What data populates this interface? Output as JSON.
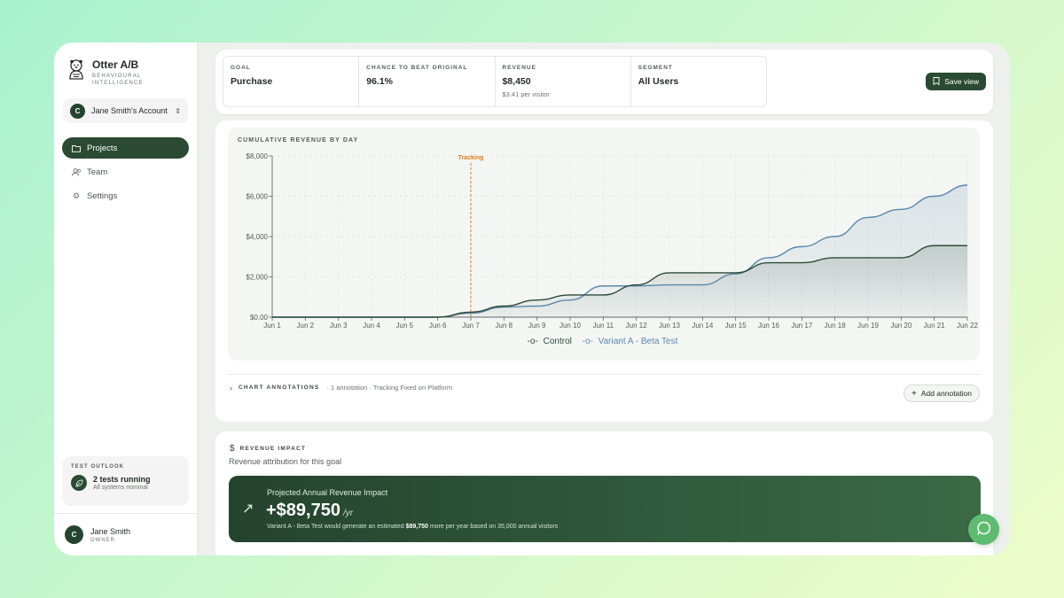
{
  "brand": {
    "name": "Otter A/B",
    "tagline": "BEHAVIOURAL INTELLIGENCE"
  },
  "account": {
    "avatar": "C",
    "name": "Jane Smith's Account"
  },
  "nav": [
    {
      "label": "Projects",
      "icon": "folder-icon",
      "active": true
    },
    {
      "label": "Team",
      "icon": "users-icon",
      "active": false
    },
    {
      "label": "Settings",
      "icon": "gear-icon",
      "active": false
    }
  ],
  "outlook": {
    "title": "TEST OUTLOOK",
    "status": "2 tests running",
    "sub": "All systems nominal"
  },
  "user": {
    "avatar": "C",
    "name": "Jane Smith",
    "role": "OWNER"
  },
  "stats": [
    {
      "label": "GOAL",
      "value": "Purchase",
      "sub": ""
    },
    {
      "label": "CHANCE TO BEAT ORIGINAL",
      "value": "96.1%",
      "sub": ""
    },
    {
      "label": "REVENUE",
      "value": "$8,450",
      "sub": "$3.41 per visitor"
    },
    {
      "label": "SEGMENT",
      "value": "All Users",
      "sub": ""
    }
  ],
  "save_view": "Save view",
  "chart_title": "CUMULATIVE REVENUE BY DAY",
  "chart_data": {
    "type": "area",
    "title": "CUMULATIVE REVENUE BY DAY",
    "categories": [
      "Jun 1",
      "Jun 2",
      "Jun 3",
      "Jun 4",
      "Jun 5",
      "Jun 6",
      "Jun 7",
      "Jun 8",
      "Jun 9",
      "Jun 10",
      "Jun 11",
      "Jun 12",
      "Jun 13",
      "Jun 14",
      "Jun 15",
      "Jun 16",
      "Jun 17",
      "Jun 18",
      "Jun 19",
      "Jun 20",
      "Jun 21",
      "Jun 22"
    ],
    "series": [
      {
        "name": "Control",
        "color": "#2e4b3a",
        "values": [
          0,
          0,
          0,
          0,
          0,
          0,
          250,
          550,
          850,
          1100,
          1100,
          1600,
          2200,
          2200,
          2200,
          2700,
          2700,
          2950,
          2950,
          2950,
          3550,
          3550
        ]
      },
      {
        "name": "Variant A - Beta Test",
        "color": "#5c88aa",
        "values": [
          0,
          0,
          0,
          0,
          0,
          0,
          200,
          500,
          550,
          850,
          1550,
          1550,
          1600,
          1600,
          2150,
          2950,
          3500,
          4000,
          4950,
          5350,
          6000,
          6550
        ]
      }
    ],
    "yticks": [
      "$0.00",
      "$2,000",
      "$4,000",
      "$6,000",
      "$8,000"
    ],
    "ylim": [
      0,
      8000
    ],
    "annotation": {
      "label": "Tracking",
      "at": "Jun 7",
      "color": "#e07b1f"
    },
    "grid": true,
    "legend": "bottom"
  },
  "legend": {
    "control": "Control",
    "variant": "Variant A - Beta Test"
  },
  "annotations": {
    "title": "CHART ANNOTATIONS",
    "desc": "· 1 annotation · Tracking Fixed on Platform",
    "add": "Add annotation"
  },
  "impact": {
    "title": "REVENUE IMPACT",
    "subtitle": "Revenue attribution for this goal",
    "banner_title": "Projected Annual Revenue Impact",
    "amount": "+$89,750",
    "unit": "/yr",
    "note_pre": "Variant A - Beta Test would generate an estimated",
    "note_amount": "$89,750",
    "note_post": "more per year based on 35,000 annual visitors"
  }
}
